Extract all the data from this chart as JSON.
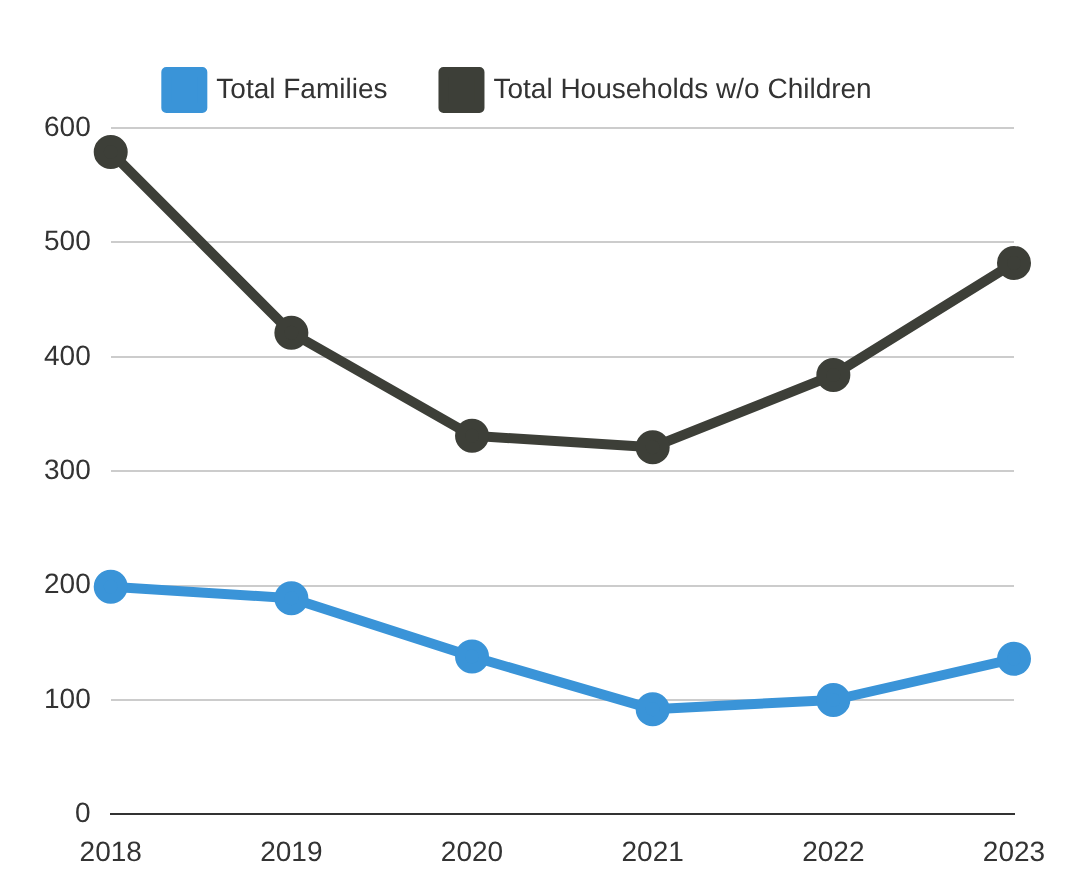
{
  "chart_data": {
    "type": "line",
    "categories": [
      "2018",
      "2019",
      "2020",
      "2021",
      "2022",
      "2023"
    ],
    "series": [
      {
        "name": "Total Families",
        "color": "#3a94d8",
        "values": [
          199,
          189,
          138,
          92,
          100,
          136
        ]
      },
      {
        "name": "Total Households w/o Children",
        "color": "#3d3f38",
        "values": [
          579,
          421,
          331,
          321,
          384,
          482
        ]
      }
    ],
    "ylim": [
      0,
      600
    ],
    "yticks": [
      0,
      100,
      200,
      300,
      400,
      500,
      600
    ],
    "grid": "y",
    "legend": "top",
    "marker": "circle"
  }
}
